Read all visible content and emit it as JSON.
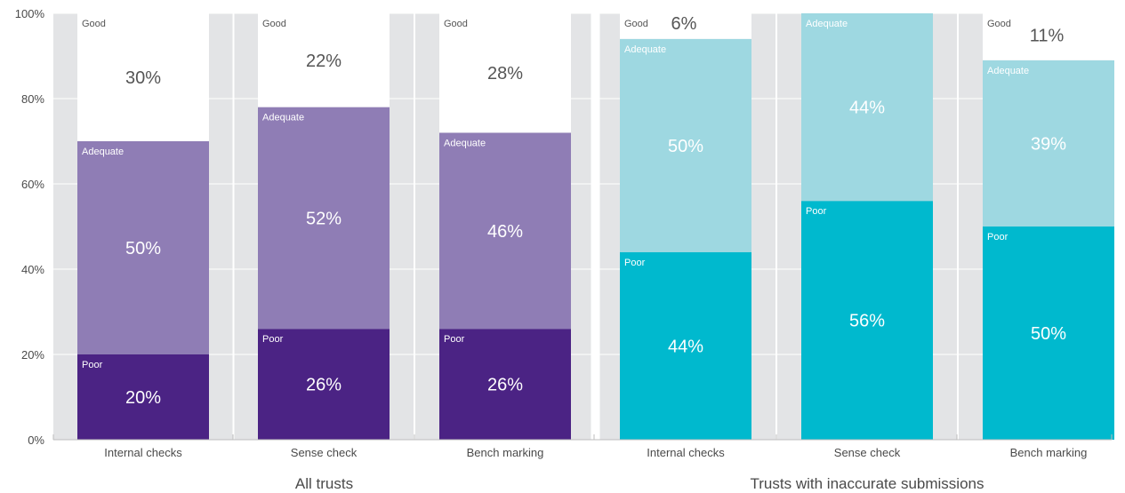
{
  "chart_data": {
    "type": "bar",
    "stacked": true,
    "percent": true,
    "ylim": [
      0,
      100
    ],
    "yticks": [
      "0%",
      "20%",
      "40%",
      "60%",
      "80%",
      "100%"
    ],
    "grid": true,
    "legend": "none",
    "segment_names": [
      "Poor",
      "Adequate",
      "Good"
    ],
    "groups": [
      {
        "label": "All trusts",
        "colors": {
          "Poor": "#4b2384",
          "Adequate": "#8f7db5",
          "Good": "#ffffff"
        },
        "text_colors": {
          "Poor": "#ffffff",
          "Adequate": "#ffffff",
          "Good": "#555555"
        },
        "bars": [
          {
            "category": "Internal checks",
            "Poor": 20,
            "Adequate": 50,
            "Good": 30,
            "labels": {
              "Poor": "20%",
              "Adequate": "50%",
              "Good": "30%"
            }
          },
          {
            "category": "Sense check",
            "Poor": 26,
            "Adequate": 52,
            "Good": 22,
            "labels": {
              "Poor": "26%",
              "Adequate": "52%",
              "Good": "22%"
            }
          },
          {
            "category": "Bench marking",
            "Poor": 26,
            "Adequate": 46,
            "Good": 28,
            "labels": {
              "Poor": "26%",
              "Adequate": "46%",
              "Good": "28%"
            }
          }
        ]
      },
      {
        "label": "Trusts with inaccurate submissions",
        "colors": {
          "Poor": "#00b9ce",
          "Adequate": "#9ed8e1",
          "Good": "#ffffff"
        },
        "text_colors": {
          "Poor": "#ffffff",
          "Adequate": "#ffffff",
          "Good": "#555555"
        },
        "bars": [
          {
            "category": "Internal checks",
            "Poor": 44,
            "Adequate": 50,
            "Good": 6,
            "labels": {
              "Poor": "44%",
              "Adequate": "50%",
              "Good": "6%"
            }
          },
          {
            "category": "Sense check",
            "Poor": 56,
            "Adequate": 44,
            "Good": 0,
            "labels": {
              "Poor": "56%",
              "Adequate": "44%",
              "Good": ""
            }
          },
          {
            "category": "Bench marking",
            "Poor": 50,
            "Adequate": 39,
            "Good": 11,
            "labels": {
              "Poor": "50%",
              "Adequate": "39%",
              "Good": "11%"
            }
          }
        ]
      }
    ]
  },
  "style": {
    "background_band": "#e3e4e6",
    "gridline": "#ffffff",
    "axis_text": "#4a4a4a"
  }
}
